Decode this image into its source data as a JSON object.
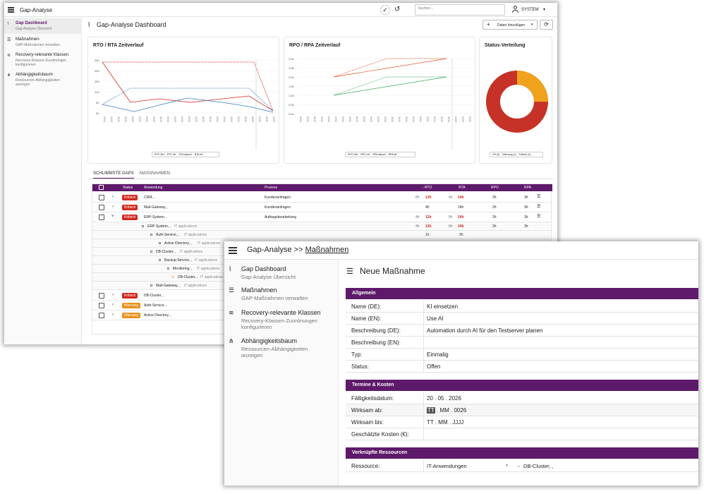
{
  "dashboard": {
    "app_title": "Gap-Analyse",
    "search_placeholder": "Suchen...",
    "user_label": "SYSTEM",
    "sidebar": [
      {
        "title": "Gap Dashboard",
        "sub": "Gap-Analyse Übersicht"
      },
      {
        "title": "Maßnahmen",
        "sub": "GAP-Maßnahmen verwalten"
      },
      {
        "title": "Recovery-relevante Klassen",
        "sub1": "Recovery-Klassen-Zuordnungen",
        "sub2": "konfigurieren"
      },
      {
        "title": "Abhängigkeitsbaum",
        "sub1": "Ressourcen-Abhängigkeiten",
        "sub2": "anzeigen"
      }
    ],
    "page_title": "Gap-Analyse Dashboard",
    "add_data_label": "Daten hinzufügen",
    "charts": {
      "rto_title": "RTO / RTA Zeitverlauf",
      "rpo_title": "RPO / RPA Zeitverlauf",
      "status_title": "Status-Verteilung",
      "rto_legend": [
        "RTO Ziel",
        "RTO eff.",
        "RTA Aktuell",
        "RTA eff."
      ],
      "rpo_legend": [
        "RPO Ziel",
        "RPO eff.",
        "RPA Aktuell",
        "RPA eff."
      ],
      "status_legend": [
        "OK (0)",
        "Warnung (1)",
        "Kritisch (4)"
      ],
      "rto_yticks": [
        "25h",
        "20h",
        "15h",
        "10h",
        "5h",
        "0h"
      ],
      "rpo_yticks": [
        "3.0h",
        "2.5h",
        "2.0h",
        "1.5h",
        "1.0h",
        "0.5h",
        "0.0h"
      ]
    },
    "tabs": [
      "SCHLIMMSTE GAPS",
      "MASSNAHMEN"
    ],
    "table": {
      "headers": [
        "Status",
        "Anwendung",
        "Prozess",
        "↓ RTO",
        "RTA",
        "RPO",
        "RPA"
      ],
      "rows": [
        {
          "status": "Kritisch",
          "app": "CRM, ,",
          "proc": "Kundenanfragen",
          "rto_a": "8h",
          "rto_b": "12h",
          "rta_a": "4h",
          "rta_b": "24h",
          "rpo": "2h",
          "rpa": "3h"
        },
        {
          "status": "Kritisch",
          "app": "Mail-Gateway, ,",
          "proc": "Kundenanfragen",
          "rto_a": "",
          "rto_b": "4h",
          "rta_a": "",
          "rta_b": "24h",
          "rpo": "2h",
          "rpa": "3h"
        },
        {
          "status": "Kritisch",
          "app": "ERP-System, ,",
          "proc": "Auftragsbearbeitung",
          "rto_a": "4h",
          "rto_b": "12h",
          "rta_a": "8h",
          "rta_b": "24h",
          "rpo": "2h",
          "rpa": "3h"
        }
      ],
      "tree": [
        {
          "name": "ERP-System, ,",
          "tag": "IT applications",
          "rto_a": "4h",
          "rto_b": "12h",
          "rta_a": "8h",
          "rta_b": "24h",
          "rpo": "2h",
          "rpa": "3h"
        },
        {
          "name": "Auth-Service, ,",
          "tag": "IT applications",
          "rto_a": "",
          "rto_b": "1h",
          "rta_a": "",
          "rta_b": "2h",
          "rpo": "",
          "rpa": ""
        },
        {
          "name": "Active Directory, ,",
          "tag": "IT applications"
        },
        {
          "name": "DB-Cluster, ,",
          "tag": "IT applications"
        },
        {
          "name": "Backup-Service, ,",
          "tag": "IT applications"
        },
        {
          "name": "Monitoring, ,",
          "tag": "IT applications"
        },
        {
          "name": "DB-Cluster, ,",
          "tag": "IT applications"
        },
        {
          "name": "Mail-Gateway, ,",
          "tag": "IT applications"
        }
      ],
      "bottom_rows": [
        {
          "status": "Kritisch",
          "app": "DB-Cluster, ,"
        },
        {
          "status": "Warnung",
          "app": "Auth-Service, ,"
        },
        {
          "status": "Warnung",
          "app": "Active Directory, ,"
        }
      ]
    }
  },
  "form": {
    "breadcrumb_root": "Gap-Analyse >> ",
    "breadcrumb_current": "Maßnahmen",
    "sidebar": [
      {
        "title": "Gap Dashboard",
        "sub": "Gap-Analyse Übersicht"
      },
      {
        "title": "Maßnahmen",
        "sub": "GAP-Maßnahmen verwalten"
      },
      {
        "title": "Recovery-relevante Klassen",
        "sub1": "Recovery-Klassen-Zuordnungen",
        "sub2": "konfigurieren"
      },
      {
        "title": "Abhängigkeitsbaum",
        "sub1": "Ressourcen-Abhängigkeiten",
        "sub2": "anzeigen"
      }
    ],
    "title": "Neue Maßnahme",
    "sections": {
      "allgemein": "Allgemein",
      "termine": "Termine & Kosten",
      "ressourcen": "Verknüpfte Ressourcen"
    },
    "fields": {
      "name_de_label": "Name (DE):",
      "name_de": "KI einsetzen",
      "name_en_label": "Name (EN):",
      "name_en": "Use AI",
      "desc_de_label": "Beschreibung (DE):",
      "desc_de": "Automation durch AI für den Testserver planen",
      "desc_en_label": "Beschreibung (EN):",
      "desc_en": "",
      "typ_label": "Typ:",
      "typ": "Einmalig",
      "status_label": "Status:",
      "status": "Offen",
      "faellig_label": "Fälligkeitsdatum:",
      "faellig": "20 . 05 . 2026",
      "ab_label": "Wirksam ab:",
      "ab_hl": "TT",
      "ab_rest": ". MM . 0026",
      "bis_label": "Wirksam bis:",
      "bis": "TT . MM . JJJJ",
      "kosten_label": "Geschätzte Kosten (€):",
      "kosten": "",
      "ressource_label": "Ressource:",
      "ressource_a": "IT-Anwendungen",
      "ressource_b": "DB-Cluster, ,"
    }
  }
}
